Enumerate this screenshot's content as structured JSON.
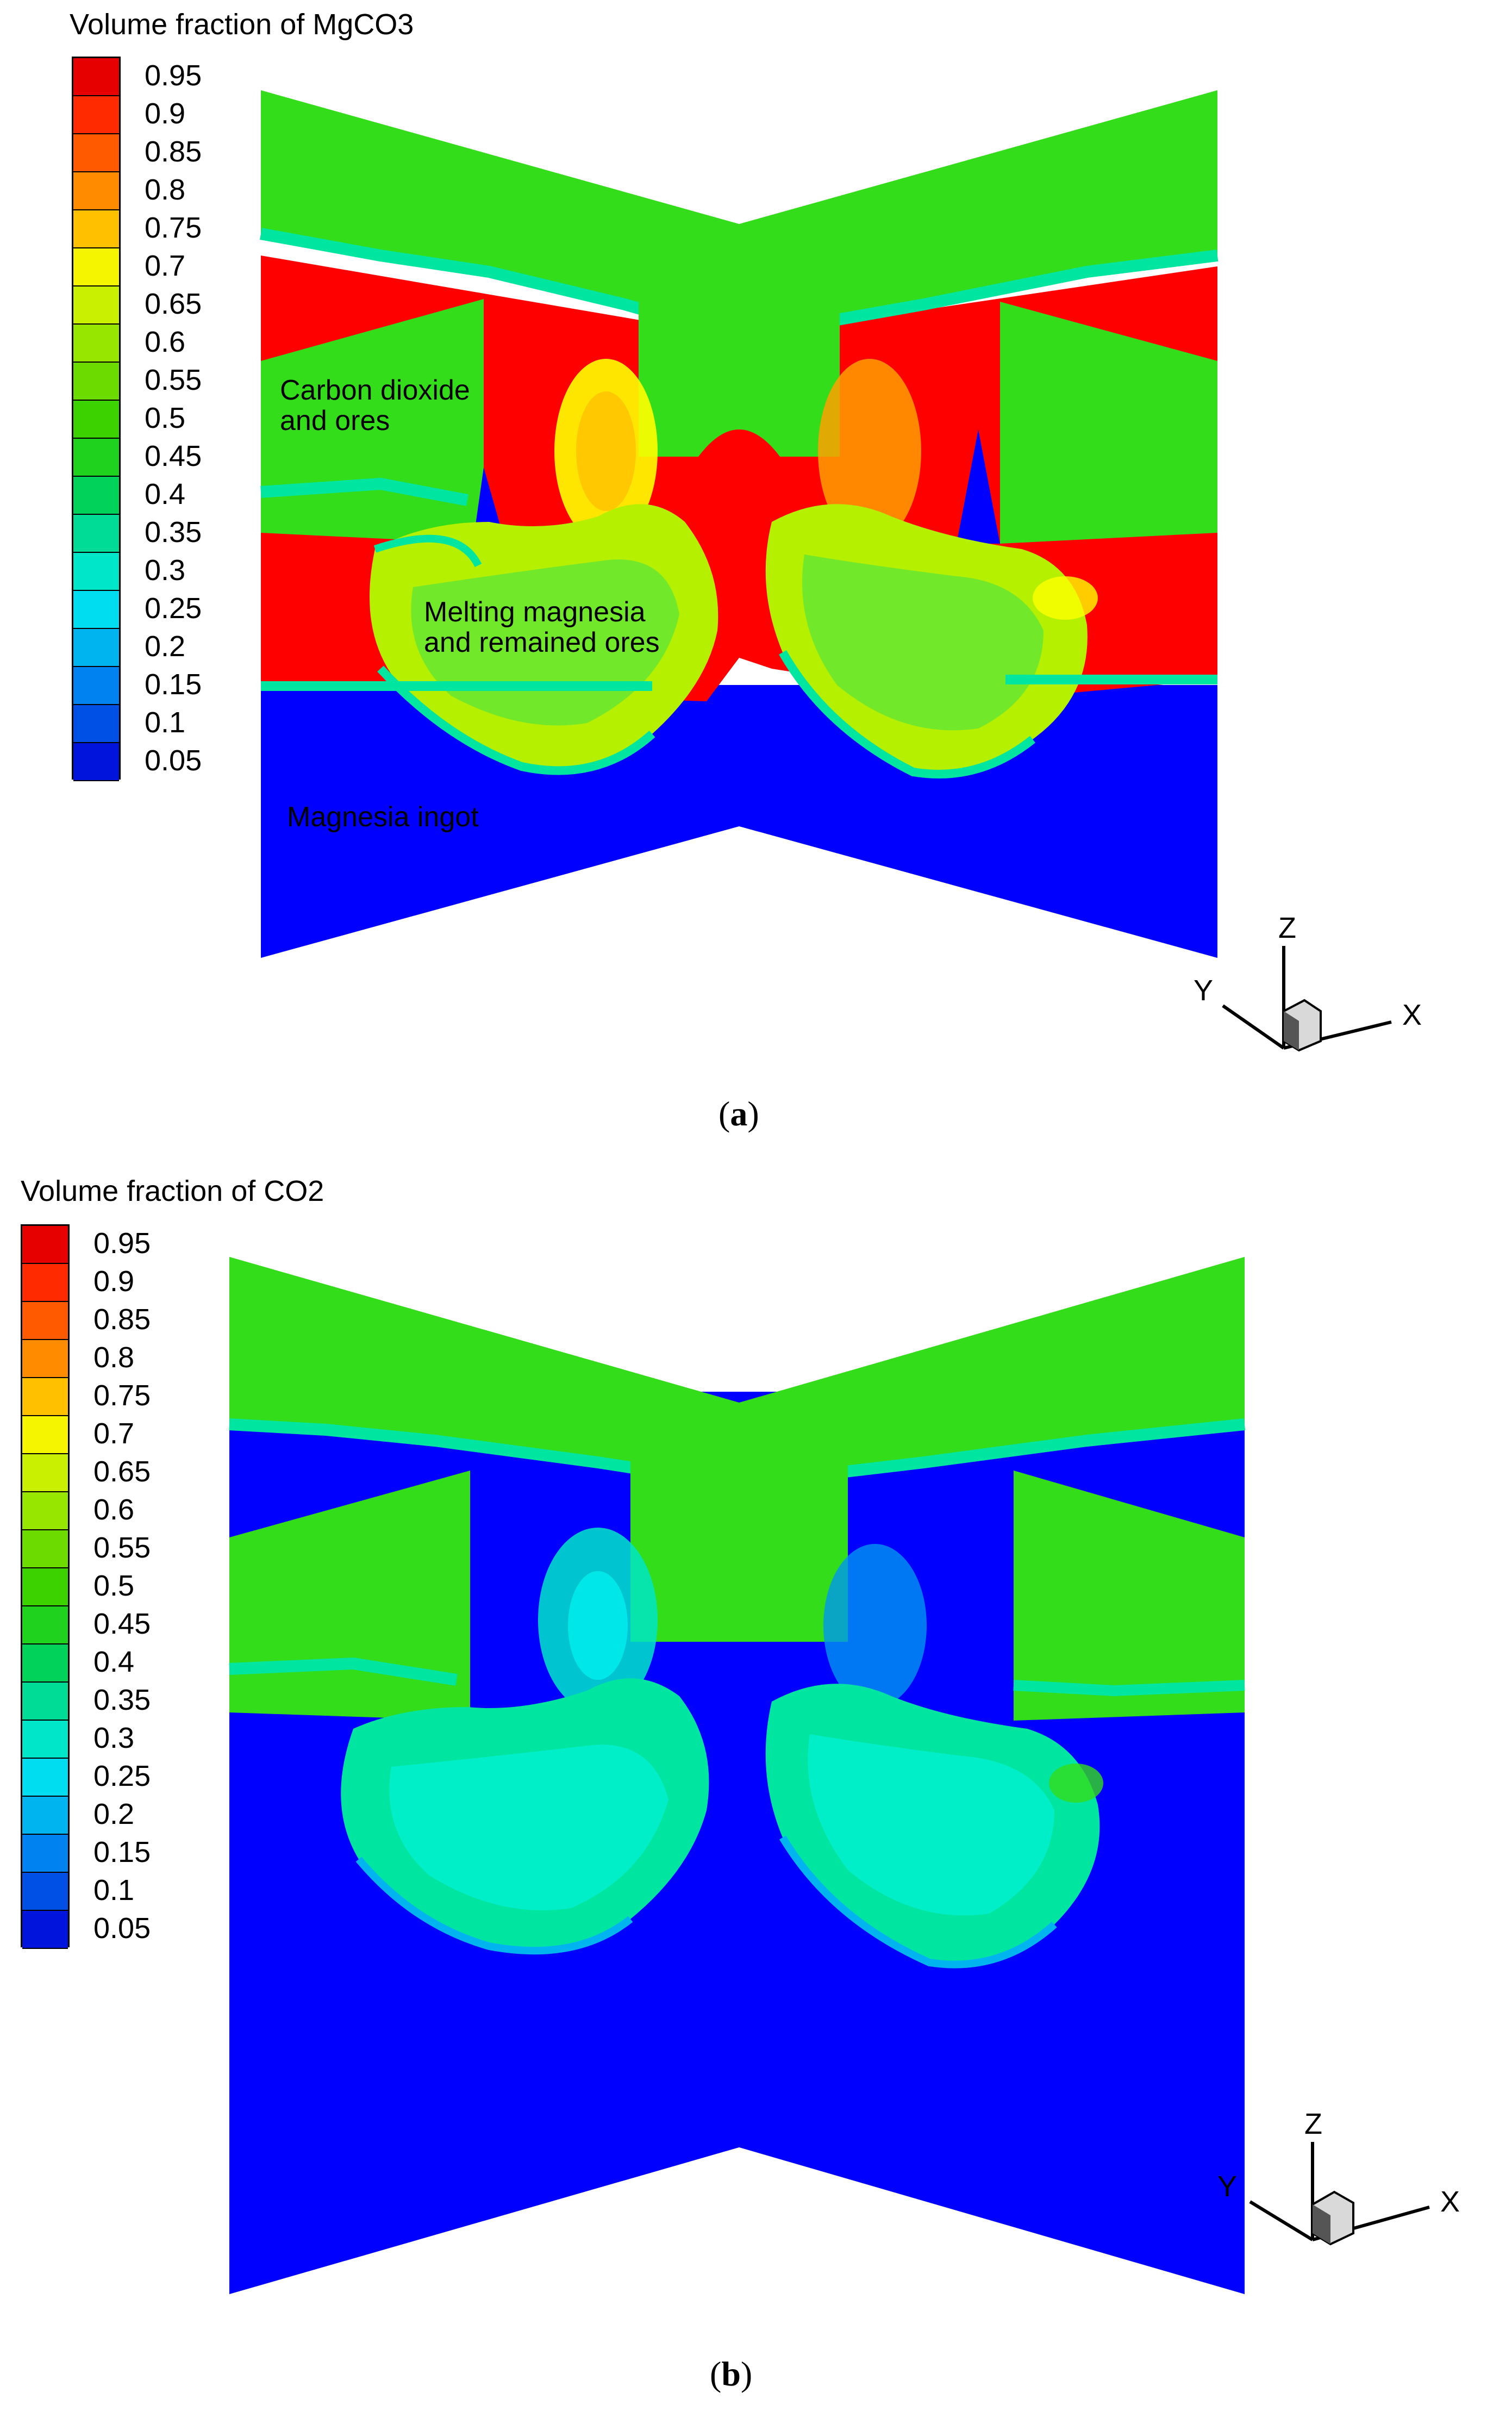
{
  "panels": [
    {
      "id": "a",
      "legend_title": "Volume fraction of MgCO3",
      "annotations": {
        "upper_region": [
          "Carbon dioxide",
          "and ores"
        ],
        "middle_region": [
          "Melting magnesia",
          "and remained ores"
        ],
        "lower_region": [
          "Magnesia ingot"
        ]
      },
      "caption": "a"
    },
    {
      "id": "b",
      "legend_title": "Volume fraction of CO2",
      "caption": "b"
    }
  ],
  "legend_levels": [
    "0.95",
    "0.9",
    "0.85",
    "0.8",
    "0.75",
    "0.7",
    "0.65",
    "0.6",
    "0.55",
    "0.5",
    "0.45",
    "0.4",
    "0.35",
    "0.3",
    "0.25",
    "0.2",
    "0.15",
    "0.1",
    "0.05"
  ],
  "legend_colors": [
    "#e60000",
    "#ff2a00",
    "#ff5a00",
    "#ff8c00",
    "#ffc000",
    "#f5f500",
    "#c8f000",
    "#96e600",
    "#6cdc00",
    "#3cd200",
    "#1ed21e",
    "#00d25a",
    "#00dc96",
    "#00e6c8",
    "#00dcf0",
    "#00b4f0",
    "#0082f0",
    "#0050e6",
    "#0014dc"
  ],
  "axis_triad": {
    "x": "X",
    "y": "Y",
    "z": "Z"
  },
  "field_colors": {
    "high": "#ff0000",
    "mid_green": "#33dd1a",
    "light_green": "#66e633",
    "yellow_green": "#b4f000",
    "yellow": "#ffff00",
    "orange": "#ffa000",
    "cyan_green": "#00e6a0",
    "cyan": "#00f0f0",
    "low": "#0000ff"
  }
}
